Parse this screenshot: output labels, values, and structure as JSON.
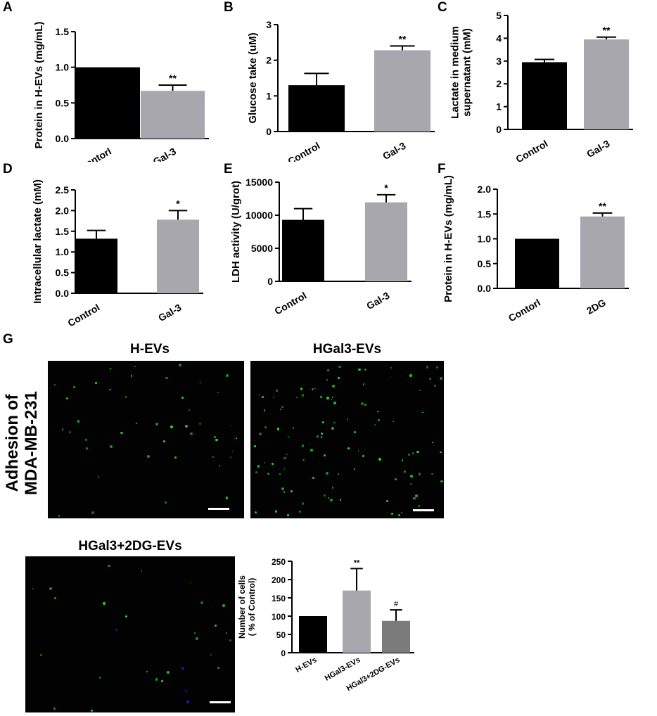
{
  "panel_letters": [
    "A",
    "B",
    "C",
    "D",
    "E",
    "F",
    "G"
  ],
  "chart_data": [
    {
      "id": "A",
      "type": "bar",
      "title": "",
      "ylabel": "Protein in H-EVs (mg/mL)",
      "xlabel": "",
      "categories": [
        "Contorl",
        "Gal-3"
      ],
      "values": [
        1.0,
        0.67
      ],
      "errors": [
        0,
        0.08
      ],
      "significance": [
        "",
        "**"
      ],
      "colors": [
        "#000000",
        "#a8a7ad"
      ],
      "ylim": [
        0.0,
        1.5
      ],
      "yticks": [
        "0.0",
        "0.5",
        "1.0",
        "1.5"
      ],
      "tick_values": [
        0,
        0.5,
        1.0,
        1.5
      ]
    },
    {
      "id": "B",
      "type": "bar",
      "title": "",
      "ylabel": "Glucose take (uM)",
      "xlabel": "",
      "categories": [
        "Control",
        "Gal-3"
      ],
      "values": [
        1.3,
        2.28
      ],
      "errors": [
        0.33,
        0.12
      ],
      "significance": [
        "",
        "**"
      ],
      "colors": [
        "#000000",
        "#a8a7ad"
      ],
      "ylim": [
        0,
        3
      ],
      "yticks": [
        "0",
        "1",
        "2",
        "3"
      ],
      "tick_values": [
        0,
        1,
        2,
        3
      ]
    },
    {
      "id": "C",
      "type": "bar",
      "title": "",
      "ylabel": "Lactate in medium supernatant (mM)",
      "ylabel_lines": [
        "Lactate in medium",
        "supernatant  (mM)"
      ],
      "xlabel": "",
      "categories": [
        "Control",
        "Gal-3"
      ],
      "values": [
        2.95,
        3.95
      ],
      "errors": [
        0.12,
        0.1
      ],
      "significance": [
        "",
        "**"
      ],
      "colors": [
        "#000000",
        "#a8a7ad"
      ],
      "ylim": [
        0,
        5
      ],
      "yticks": [
        "0",
        "1",
        "2",
        "3",
        "4",
        "5"
      ],
      "tick_values": [
        0,
        1,
        2,
        3,
        4,
        5
      ]
    },
    {
      "id": "D",
      "type": "bar",
      "title": "",
      "ylabel": "Intracellular lactate (mM)",
      "xlabel": "",
      "categories": [
        "Control",
        "Gal-3"
      ],
      "values": [
        1.32,
        1.78
      ],
      "errors": [
        0.2,
        0.22
      ],
      "significance": [
        "",
        "*"
      ],
      "colors": [
        "#000000",
        "#a8a7ad"
      ],
      "ylim": [
        0.0,
        2.5
      ],
      "yticks": [
        "0.0",
        "0.5",
        "1.0",
        "1.5",
        "2.0",
        "2.5"
      ],
      "tick_values": [
        0,
        0.5,
        1.0,
        1.5,
        2.0,
        2.5
      ]
    },
    {
      "id": "E",
      "type": "bar",
      "title": "",
      "ylabel": "LDH activity (U/grot)",
      "xlabel": "",
      "categories": [
        "Control",
        "Gal-3"
      ],
      "values": [
        9300,
        11950
      ],
      "errors": [
        1700,
        1150
      ],
      "significance": [
        "",
        "*"
      ],
      "colors": [
        "#000000",
        "#a8a7ad"
      ],
      "ylim": [
        0,
        15000
      ],
      "yticks": [
        "0",
        "5000",
        "10000",
        "15000"
      ],
      "tick_values": [
        0,
        5000,
        10000,
        15000
      ]
    },
    {
      "id": "F",
      "type": "bar",
      "title": "",
      "ylabel": "Protein in H-EVs (mg/mL)",
      "xlabel": "",
      "categories": [
        "Contorl",
        "2DG"
      ],
      "values": [
        1.0,
        1.45
      ],
      "errors": [
        0,
        0.07
      ],
      "significance": [
        "",
        "**"
      ],
      "colors": [
        "#000000",
        "#a8a7ad"
      ],
      "ylim": [
        0.0,
        2.0
      ],
      "yticks": [
        "0.0",
        "0.5",
        "1.0",
        "1.5",
        "2.0"
      ],
      "tick_values": [
        0,
        0.5,
        1.0,
        1.5,
        2.0
      ]
    },
    {
      "id": "G-chart",
      "type": "bar",
      "title": "",
      "ylabel": "Number of cells ( % of Control)",
      "ylabel_lines": [
        "Number of cells",
        "( % of Control)"
      ],
      "xlabel": "",
      "categories": [
        "H-EVs",
        "HGal3-EVs",
        "HGal3+2DG-EVs"
      ],
      "values": [
        100,
        170,
        87
      ],
      "errors": [
        0,
        60,
        30
      ],
      "significance": [
        "",
        "**",
        "#"
      ],
      "colors": [
        "#000000",
        "#a8a7ad",
        "#7b7b7b"
      ],
      "ylim": [
        0,
        250
      ],
      "yticks": [
        "0",
        "50",
        "100",
        "150",
        "200",
        "250"
      ],
      "tick_values": [
        0,
        50,
        100,
        150,
        200,
        250
      ]
    }
  ],
  "micrographs": {
    "h_evs_title": "H-EVs",
    "hgal3_evs_title": "HGal3-EVs",
    "hgal3_2dg_evs_title": "HGal3+2DG-EVs",
    "side_label_line1": "Adhesion    of",
    "side_label_line2": "MDA-MB-231",
    "background_color": "#020203",
    "cell_color": "#2fe02f"
  }
}
